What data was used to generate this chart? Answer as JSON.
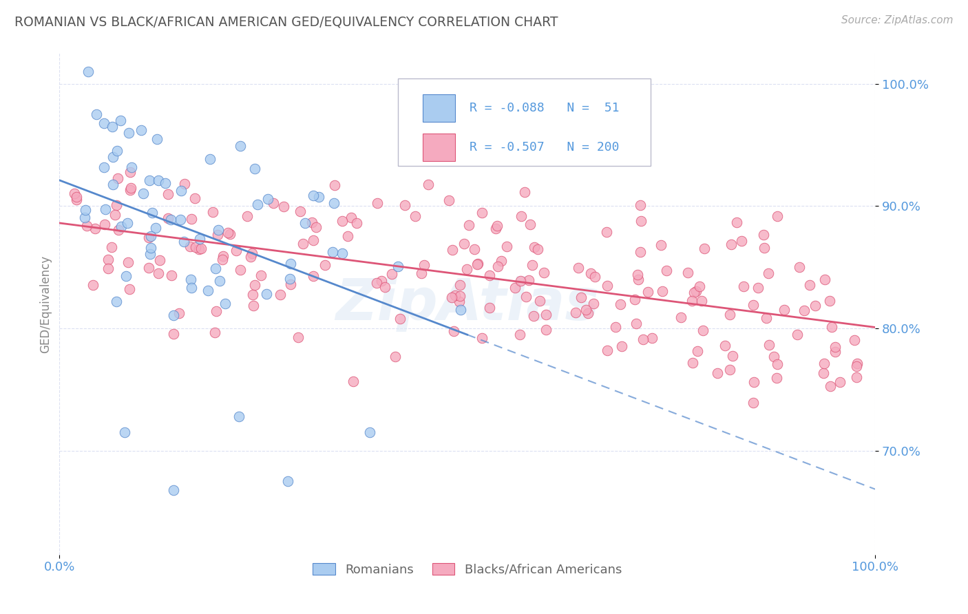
{
  "title": "ROMANIAN VS BLACK/AFRICAN AMERICAN GED/EQUIVALENCY CORRELATION CHART",
  "source": "Source: ZipAtlas.com",
  "ylabel": "GED/Equivalency",
  "legend_label1": "Romanians",
  "legend_label2": "Blacks/African Americans",
  "R1": -0.088,
  "N1": 51,
  "R2": -0.507,
  "N2": 200,
  "color1": "#aaccf0",
  "color2": "#f5aabf",
  "line_color1": "#5588cc",
  "line_color2": "#dd5577",
  "title_color": "#555555",
  "axis_color": "#5599dd",
  "watermark": "ZipAtlas",
  "background_color": "#ffffff",
  "grid_color": "#d8ddf0",
  "x_range": [
    0.0,
    1.0
  ],
  "y_range": [
    0.615,
    1.025
  ],
  "yticks": [
    0.7,
    0.8,
    0.9,
    1.0
  ],
  "ytick_labels": [
    "70.0%",
    "80.0%",
    "90.0%",
    "100.0%"
  ],
  "xticks": [
    0.0,
    1.0
  ],
  "xtick_labels": [
    "0.0%",
    "100.0%"
  ]
}
